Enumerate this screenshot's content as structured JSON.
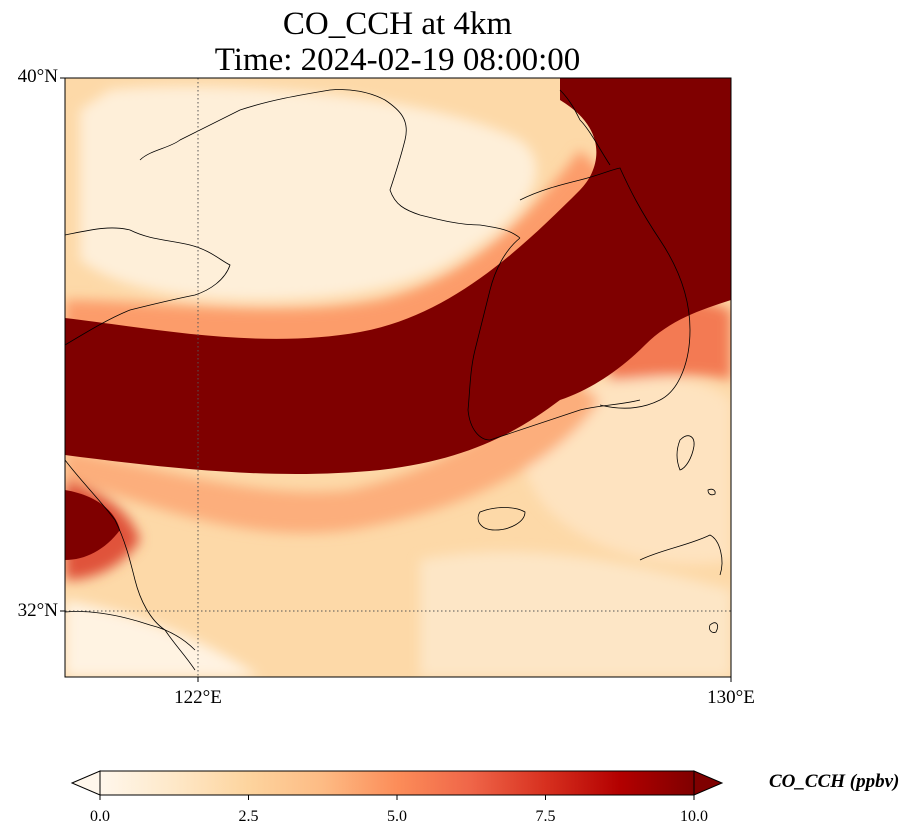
{
  "title": {
    "line1": "CO_CCH at 4km",
    "line2": "Time: 2024-02-19 08:00:00"
  },
  "map": {
    "lat_labels": [
      "40°N",
      "32°N"
    ],
    "lon_labels": [
      "122°E",
      "130°E"
    ],
    "extent": {
      "lon": [
        120,
        130
      ],
      "lat": [
        31,
        40
      ]
    },
    "gridlines": {
      "lon": [
        122
      ],
      "lat": [
        32
      ]
    }
  },
  "colorbar": {
    "label": "CO_CCH (ppbv)",
    "ticks": [
      "0.0",
      "2.5",
      "5.0",
      "7.5",
      "10.0"
    ],
    "range": [
      0,
      10
    ],
    "colormap": "OrRd",
    "extend": "both"
  },
  "colors": {
    "low": "#fff7ec",
    "mid": "#fdd49e",
    "high": "#7f0000"
  }
}
